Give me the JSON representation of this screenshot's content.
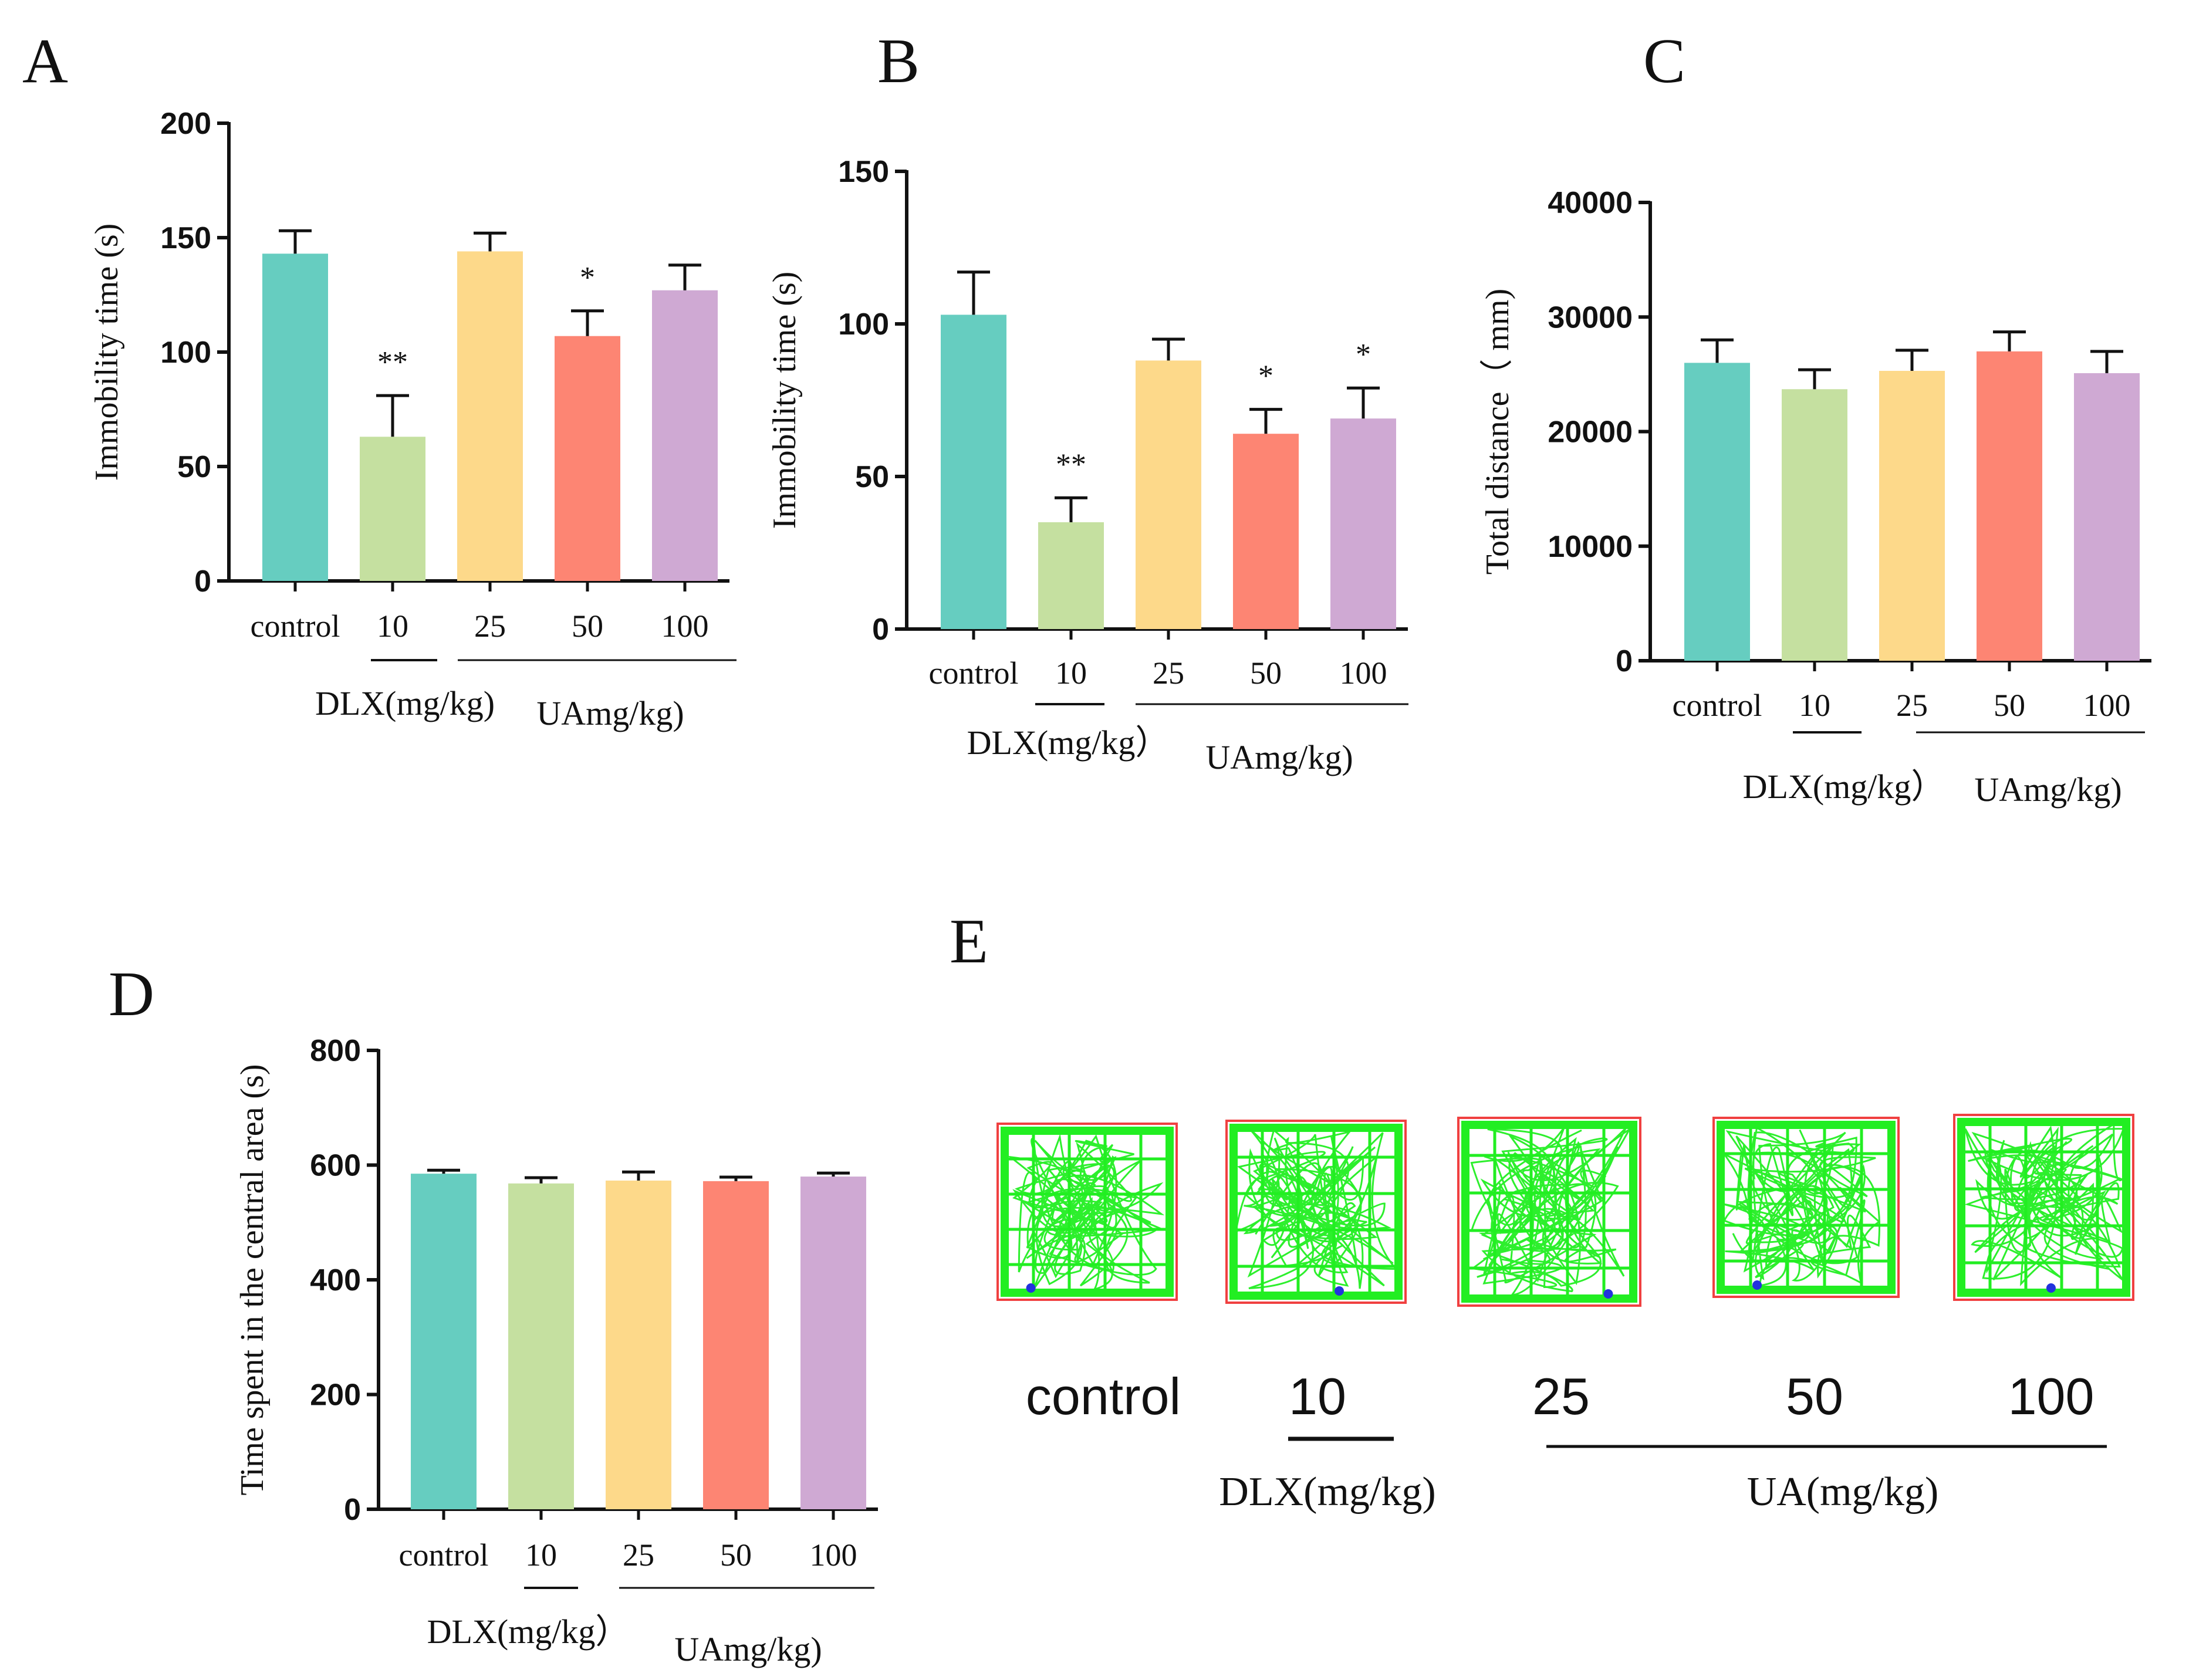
{
  "chart_data": [
    {
      "panel": "A",
      "type": "bar",
      "ylabel": "Immobility time (s)",
      "ylim": [
        0,
        200
      ],
      "yticks": [
        0,
        50,
        100,
        150,
        200
      ],
      "categories": [
        "control",
        "10",
        "25",
        "50",
        "100"
      ],
      "values": [
        143,
        63,
        144,
        107,
        127
      ],
      "errors": [
        10,
        18,
        8,
        11,
        11
      ],
      "significance": [
        "",
        "**",
        "",
        "*",
        ""
      ],
      "colors": [
        "#66cdc0",
        "#c5e0a0",
        "#fdd98a",
        "#fd8573",
        "#cfa9d3"
      ],
      "groups": [
        "DLX(mg/kg)",
        "UAmg/kg)"
      ]
    },
    {
      "panel": "B",
      "type": "bar",
      "ylabel": "Immobility time (s)",
      "ylim": [
        0,
        150
      ],
      "yticks": [
        0,
        50,
        100,
        150
      ],
      "categories": [
        "control",
        "10",
        "25",
        "50",
        "100"
      ],
      "values": [
        103,
        35,
        88,
        64,
        69
      ],
      "errors": [
        14,
        8,
        7,
        8,
        10
      ],
      "significance": [
        "",
        "**",
        "",
        "*",
        "*"
      ],
      "colors": [
        "#66cdc0",
        "#c5e0a0",
        "#fdd98a",
        "#fd8573",
        "#cfa9d3"
      ],
      "groups": [
        "DLX(mg/kg）",
        "UAmg/kg)"
      ]
    },
    {
      "panel": "C",
      "type": "bar",
      "ylabel": "Total distance（ mm)",
      "ylim": [
        0,
        40000
      ],
      "yticks": [
        0,
        10000,
        20000,
        30000,
        40000
      ],
      "categories": [
        "control",
        "10",
        "25",
        "50",
        "100"
      ],
      "values": [
        26000,
        23700,
        25300,
        27000,
        25100
      ],
      "errors": [
        2000,
        1700,
        1800,
        1700,
        1900
      ],
      "significance": [
        "",
        "",
        "",
        "",
        ""
      ],
      "colors": [
        "#66cdc0",
        "#c5e0a0",
        "#fdd98a",
        "#fd8573",
        "#cfa9d3"
      ],
      "groups": [
        "DLX(mg/kg）",
        "UAmg/kg)"
      ]
    },
    {
      "panel": "D",
      "type": "bar",
      "ylabel": "Time spent in the central area (s)",
      "ylim": [
        0,
        800
      ],
      "yticks": [
        0,
        200,
        400,
        600,
        800
      ],
      "categories": [
        "control",
        "10",
        "25",
        "50",
        "100"
      ],
      "values": [
        585,
        568,
        573,
        572,
        580
      ],
      "errors": [
        6,
        10,
        15,
        7,
        6
      ],
      "significance": [
        "",
        "",
        "",
        "",
        ""
      ],
      "colors": [
        "#66cdc0",
        "#c5e0a0",
        "#fdd98a",
        "#fd8573",
        "#cfa9d3"
      ],
      "groups": [
        "DLX(mg/kg）",
        "UAmg/kg)"
      ]
    }
  ],
  "panel_e": {
    "letter": "E",
    "labels": [
      "control",
      "10",
      "25",
      "50",
      "100"
    ],
    "groups": [
      "DLX(mg/kg)",
      "UA(mg/kg)"
    ],
    "track_color": "#22ee22",
    "border_color": "#f04040"
  }
}
